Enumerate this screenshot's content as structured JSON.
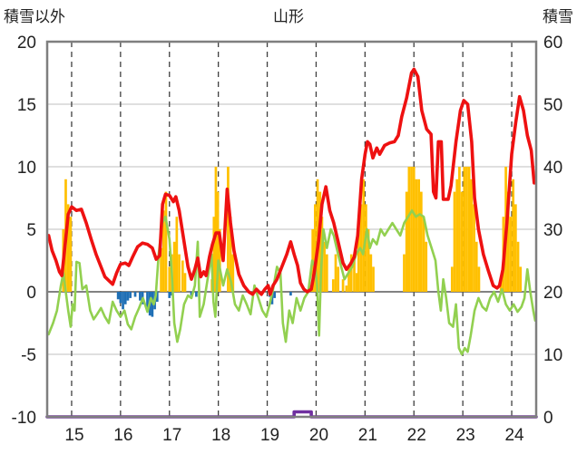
{
  "chart_data": {
    "type": "bar+line",
    "title": "山形",
    "left_axis_label": "積雪以外",
    "right_axis_label": "積雪",
    "left_ylim": [
      -10,
      20
    ],
    "left_ticks": [
      "-10",
      "-5",
      "0",
      "5",
      "10",
      "15",
      "20"
    ],
    "right_ylim": [
      0,
      60
    ],
    "right_ticks": [
      "0",
      "10",
      "20",
      "30",
      "40",
      "50",
      "60"
    ],
    "x_range": [
      14.5,
      24.5
    ],
    "x_ticks": [
      {
        "x": 15,
        "label": "15"
      },
      {
        "x": 16,
        "label": "16"
      },
      {
        "x": 17,
        "label": "17"
      },
      {
        "x": 18,
        "label": "18"
      },
      {
        "x": 19,
        "label": "19"
      },
      {
        "x": 20,
        "label": "20"
      },
      {
        "x": 21,
        "label": "21"
      },
      {
        "x": 22,
        "label": "22"
      },
      {
        "x": 23,
        "label": "23"
      },
      {
        "x": 24,
        "label": "24"
      }
    ],
    "grid": {
      "horizontal": true,
      "vertical_dashed": true
    },
    "colors": {
      "red_series": "#ee1111",
      "green_series": "#92d050",
      "snow_bars": "#ffc000",
      "negative_bars": "#1f6fb5",
      "purple_series": "#7030a0",
      "axis": "#7f7f7f"
    },
    "series_red": [
      [
        14.53,
        4.5
      ],
      [
        14.6,
        3.3
      ],
      [
        14.68,
        2.5
      ],
      [
        14.75,
        1.6
      ],
      [
        14.8,
        1.3
      ],
      [
        14.86,
        3.5
      ],
      [
        14.93,
        6.2
      ],
      [
        15.0,
        6.8
      ],
      [
        15.1,
        6.5
      ],
      [
        15.2,
        6.6
      ],
      [
        15.3,
        5.5
      ],
      [
        15.4,
        4.2
      ],
      [
        15.5,
        3.0
      ],
      [
        15.6,
        2.0
      ],
      [
        15.68,
        1.2
      ],
      [
        15.76,
        0.9
      ],
      [
        15.84,
        0.6
      ],
      [
        15.92,
        1.5
      ],
      [
        16.0,
        2.2
      ],
      [
        16.1,
        2.3
      ],
      [
        16.17,
        2.1
      ],
      [
        16.25,
        2.8
      ],
      [
        16.35,
        3.6
      ],
      [
        16.45,
        3.9
      ],
      [
        16.55,
        3.8
      ],
      [
        16.65,
        3.5
      ],
      [
        16.73,
        2.6
      ],
      [
        16.8,
        2.9
      ],
      [
        16.86,
        7.0
      ],
      [
        16.92,
        7.8
      ],
      [
        17.0,
        7.7
      ],
      [
        17.08,
        7.2
      ],
      [
        17.13,
        7.6
      ],
      [
        17.2,
        6.5
      ],
      [
        17.3,
        4.0
      ],
      [
        17.38,
        2.0
      ],
      [
        17.45,
        1.0
      ],
      [
        17.52,
        1.8
      ],
      [
        17.58,
        2.7
      ],
      [
        17.64,
        1.2
      ],
      [
        17.7,
        1.6
      ],
      [
        17.75,
        1.3
      ],
      [
        17.82,
        2.8
      ],
      [
        17.88,
        3.8
      ],
      [
        17.95,
        4.7
      ],
      [
        18.02,
        4.7
      ],
      [
        18.1,
        2.5
      ],
      [
        18.18,
        8.2
      ],
      [
        18.25,
        5.5
      ],
      [
        18.32,
        3.3
      ],
      [
        18.42,
        1.4
      ],
      [
        18.52,
        0.5
      ],
      [
        18.62,
        0.0
      ],
      [
        18.7,
        -0.2
      ],
      [
        18.78,
        0.2
      ],
      [
        18.88,
        -0.2
      ],
      [
        18.95,
        0.2
      ],
      [
        19.02,
        0.5
      ],
      [
        19.06,
        -0.2
      ],
      [
        19.12,
        0.5
      ],
      [
        19.2,
        1.0
      ],
      [
        19.3,
        2.0
      ],
      [
        19.4,
        3.0
      ],
      [
        19.48,
        4.0
      ],
      [
        19.55,
        3.0
      ],
      [
        19.62,
        2.1
      ],
      [
        19.68,
        0.7
      ],
      [
        19.75,
        0.2
      ],
      [
        19.82,
        0.0
      ],
      [
        19.9,
        0.2
      ],
      [
        19.96,
        1.5
      ],
      [
        20.05,
        4.0
      ],
      [
        20.12,
        7.0
      ],
      [
        20.2,
        8.4
      ],
      [
        20.28,
        6.5
      ],
      [
        20.36,
        5.5
      ],
      [
        20.45,
        4.0
      ],
      [
        20.55,
        2.3
      ],
      [
        20.62,
        1.8
      ],
      [
        20.7,
        2.2
      ],
      [
        20.78,
        2.8
      ],
      [
        20.85,
        4.5
      ],
      [
        20.93,
        9.0
      ],
      [
        21.0,
        11.0
      ],
      [
        21.05,
        12.0
      ],
      [
        21.1,
        11.8
      ],
      [
        21.16,
        10.7
      ],
      [
        21.24,
        11.5
      ],
      [
        21.3,
        11.0
      ],
      [
        21.4,
        11.7
      ],
      [
        21.5,
        11.9
      ],
      [
        21.6,
        12.0
      ],
      [
        21.68,
        12.5
      ],
      [
        21.75,
        14.0
      ],
      [
        21.85,
        15.5
      ],
      [
        21.95,
        17.5
      ],
      [
        22.0,
        17.8
      ],
      [
        22.08,
        17.2
      ],
      [
        22.16,
        14.5
      ],
      [
        22.26,
        13.0
      ],
      [
        22.35,
        12.6
      ],
      [
        22.4,
        8.0
      ],
      [
        22.45,
        7.5
      ],
      [
        22.5,
        12.0
      ],
      [
        22.56,
        12.0
      ],
      [
        22.6,
        7.4
      ],
      [
        22.7,
        7.4
      ],
      [
        22.76,
        8.5
      ],
      [
        22.86,
        12.0
      ],
      [
        22.95,
        14.5
      ],
      [
        23.02,
        15.3
      ],
      [
        23.1,
        15.0
      ],
      [
        23.18,
        12.0
      ],
      [
        23.24,
        7.5
      ],
      [
        23.32,
        5.0
      ],
      [
        23.42,
        3.0
      ],
      [
        23.52,
        1.7
      ],
      [
        23.62,
        0.5
      ],
      [
        23.7,
        0.3
      ],
      [
        23.75,
        0.5
      ],
      [
        23.82,
        1.8
      ],
      [
        23.9,
        5.5
      ],
      [
        24.0,
        11.0
      ],
      [
        24.08,
        13.5
      ],
      [
        24.16,
        15.6
      ],
      [
        24.24,
        14.5
      ],
      [
        24.32,
        12.5
      ],
      [
        24.4,
        11.3
      ],
      [
        24.46,
        8.7
      ]
    ],
    "series_green": [
      [
        14.53,
        -3.4
      ],
      [
        14.62,
        -2.5
      ],
      [
        14.7,
        -1.5
      ],
      [
        14.78,
        0.5
      ],
      [
        14.83,
        1.5
      ],
      [
        14.88,
        0.0
      ],
      [
        14.93,
        -1.5
      ],
      [
        14.98,
        -2.8
      ],
      [
        15.02,
        -1.0
      ],
      [
        15.06,
        -1.5
      ],
      [
        15.1,
        2.4
      ],
      [
        15.16,
        2.3
      ],
      [
        15.22,
        0.2
      ],
      [
        15.3,
        0.5
      ],
      [
        15.38,
        -1.5
      ],
      [
        15.45,
        -2.2
      ],
      [
        15.52,
        -1.8
      ],
      [
        15.6,
        -1.3
      ],
      [
        15.68,
        -2.0
      ],
      [
        15.76,
        -2.5
      ],
      [
        15.84,
        -0.8
      ],
      [
        15.92,
        -1.5
      ],
      [
        16.0,
        -2.0
      ],
      [
        16.08,
        -1.5
      ],
      [
        16.15,
        -2.6
      ],
      [
        16.22,
        -3.0
      ],
      [
        16.3,
        -2.0
      ],
      [
        16.38,
        -1.3
      ],
      [
        16.46,
        -0.5
      ],
      [
        16.55,
        -1.6
      ],
      [
        16.62,
        -0.5
      ],
      [
        16.68,
        -1.0
      ],
      [
        16.72,
        -0.3
      ],
      [
        16.78,
        3.0
      ],
      [
        16.85,
        5.5
      ],
      [
        16.92,
        6.0
      ],
      [
        17.0,
        4.2
      ],
      [
        17.05,
        1.5
      ],
      [
        17.1,
        -2.5
      ],
      [
        17.16,
        -4.0
      ],
      [
        17.22,
        -3.0
      ],
      [
        17.3,
        -1.0
      ],
      [
        17.38,
        -0.3
      ],
      [
        17.45,
        -0.5
      ],
      [
        17.52,
        0.5
      ],
      [
        17.58,
        4.0
      ],
      [
        17.62,
        -2.0
      ],
      [
        17.7,
        -1.0
      ],
      [
        17.78,
        1.0
      ],
      [
        17.86,
        3.0
      ],
      [
        17.9,
        -0.8
      ],
      [
        17.94,
        -2.0
      ],
      [
        18.0,
        2.5
      ],
      [
        18.05,
        1.5
      ],
      [
        18.1,
        0.5
      ],
      [
        18.18,
        1.8
      ],
      [
        18.26,
        0.8
      ],
      [
        18.34,
        -1.0
      ],
      [
        18.42,
        -1.5
      ],
      [
        18.5,
        -0.3
      ],
      [
        18.58,
        -1.0
      ],
      [
        18.66,
        -1.8
      ],
      [
        18.74,
        0.5
      ],
      [
        18.82,
        -0.5
      ],
      [
        18.9,
        -1.5
      ],
      [
        18.98,
        -2.0
      ],
      [
        19.05,
        -1.0
      ],
      [
        19.12,
        0.2
      ],
      [
        19.2,
        2.0
      ],
      [
        19.27,
        1.5
      ],
      [
        19.32,
        -2.5
      ],
      [
        19.38,
        -4.0
      ],
      [
        19.45,
        -1.5
      ],
      [
        19.52,
        -2.5
      ],
      [
        19.6,
        -0.5
      ],
      [
        19.68,
        -1.5
      ],
      [
        19.76,
        -0.5
      ],
      [
        19.84,
        0.0
      ],
      [
        19.92,
        2.5
      ],
      [
        19.98,
        2.0
      ],
      [
        20.02,
        0.5
      ],
      [
        20.06,
        -3.5
      ],
      [
        20.1,
        1.5
      ],
      [
        20.15,
        5.0
      ],
      [
        20.22,
        3.5
      ],
      [
        20.3,
        5.0
      ],
      [
        20.36,
        4.5
      ],
      [
        20.42,
        3.5
      ],
      [
        20.5,
        2.2
      ],
      [
        20.58,
        1.0
      ],
      [
        20.66,
        1.5
      ],
      [
        20.74,
        2.0
      ],
      [
        20.82,
        3.0
      ],
      [
        20.9,
        3.5
      ],
      [
        20.96,
        3.0
      ],
      [
        21.04,
        5.0
      ],
      [
        21.1,
        3.5
      ],
      [
        21.16,
        4.2
      ],
      [
        21.24,
        3.8
      ],
      [
        21.32,
        5.0
      ],
      [
        21.4,
        4.5
      ],
      [
        21.48,
        5.0
      ],
      [
        21.56,
        5.5
      ],
      [
        21.64,
        5.0
      ],
      [
        21.72,
        4.5
      ],
      [
        21.8,
        5.5
      ],
      [
        21.88,
        6.0
      ],
      [
        21.96,
        6.5
      ],
      [
        22.04,
        6.0
      ],
      [
        22.12,
        6.2
      ],
      [
        22.2,
        6.0
      ],
      [
        22.28,
        4.5
      ],
      [
        22.36,
        3.5
      ],
      [
        22.44,
        2.5
      ],
      [
        22.5,
        0.0
      ],
      [
        22.55,
        -1.5
      ],
      [
        22.6,
        1.0
      ],
      [
        22.66,
        -0.5
      ],
      [
        22.72,
        -2.5
      ],
      [
        22.8,
        -2.8
      ],
      [
        22.86,
        -1.0
      ],
      [
        22.92,
        -4.5
      ],
      [
        22.98,
        -5.0
      ],
      [
        23.04,
        -4.5
      ],
      [
        23.1,
        -4.8
      ],
      [
        23.16,
        -3.5
      ],
      [
        23.24,
        -1.5
      ],
      [
        23.32,
        -0.5
      ],
      [
        23.4,
        -1.2
      ],
      [
        23.48,
        -1.5
      ],
      [
        23.56,
        -0.5
      ],
      [
        23.64,
        0.0
      ],
      [
        23.72,
        -0.8
      ],
      [
        23.8,
        0.2
      ],
      [
        23.88,
        -1.0
      ],
      [
        23.96,
        -1.5
      ],
      [
        24.04,
        -1.0
      ],
      [
        24.12,
        -1.6
      ],
      [
        24.2,
        -1.2
      ],
      [
        24.26,
        -0.5
      ],
      [
        24.32,
        1.8
      ],
      [
        24.38,
        0.0
      ],
      [
        24.44,
        -1.5
      ],
      [
        24.48,
        -2.3
      ]
    ],
    "bars_snow": [
      [
        14.83,
        5.0
      ],
      [
        14.88,
        9.0
      ],
      [
        14.93,
        7.0
      ],
      [
        14.98,
        6.0
      ],
      [
        16.83,
        3.5
      ],
      [
        16.88,
        6.5
      ],
      [
        16.93,
        8.0
      ],
      [
        17.0,
        2.0
      ],
      [
        17.05,
        3.0
      ],
      [
        17.1,
        4.0
      ],
      [
        17.15,
        6.0
      ],
      [
        17.2,
        3.0
      ],
      [
        17.27,
        2.5
      ],
      [
        17.32,
        1.5
      ],
      [
        17.87,
        1.0
      ],
      [
        17.91,
        6.0
      ],
      [
        17.95,
        10.0
      ],
      [
        17.99,
        8.0
      ],
      [
        18.03,
        5.0
      ],
      [
        18.2,
        10.0
      ],
      [
        18.25,
        6.0
      ],
      [
        18.3,
        3.0
      ],
      [
        19.88,
        0.5
      ],
      [
        19.93,
        5.0
      ],
      [
        19.98,
        7.0
      ],
      [
        20.03,
        9.0
      ],
      [
        20.08,
        8.0
      ],
      [
        20.12,
        6.0
      ],
      [
        20.17,
        4.0
      ],
      [
        20.22,
        3.0
      ],
      [
        20.35,
        1.0
      ],
      [
        20.4,
        3.0
      ],
      [
        20.45,
        2.0
      ],
      [
        20.55,
        1.0
      ],
      [
        20.62,
        0.5
      ],
      [
        20.67,
        2.0
      ],
      [
        20.72,
        3.0
      ],
      [
        20.78,
        2.5
      ],
      [
        20.83,
        1.5
      ],
      [
        20.87,
        5.0
      ],
      [
        20.92,
        7.0
      ],
      [
        20.97,
        9.0
      ],
      [
        21.02,
        7.0
      ],
      [
        21.07,
        5.0
      ],
      [
        21.12,
        3.0
      ],
      [
        21.17,
        2.0
      ],
      [
        21.8,
        3.0
      ],
      [
        21.85,
        8.0
      ],
      [
        21.9,
        10.0
      ],
      [
        21.95,
        10.0
      ],
      [
        22.0,
        10.0
      ],
      [
        22.05,
        9.0
      ],
      [
        22.1,
        9.0
      ],
      [
        22.15,
        8.0
      ],
      [
        22.2,
        6.0
      ],
      [
        22.25,
        4.0
      ],
      [
        22.78,
        2.0
      ],
      [
        22.83,
        8.0
      ],
      [
        22.88,
        9.0
      ],
      [
        22.93,
        10.0
      ],
      [
        22.98,
        8.0
      ],
      [
        23.03,
        10.0
      ],
      [
        23.08,
        10.0
      ],
      [
        23.13,
        10.0
      ],
      [
        23.18,
        9.0
      ],
      [
        23.23,
        7.0
      ],
      [
        23.28,
        4.0
      ],
      [
        23.33,
        2.0
      ],
      [
        23.78,
        1.0
      ],
      [
        23.83,
        6.0
      ],
      [
        23.88,
        10.0
      ],
      [
        23.93,
        8.0
      ],
      [
        23.98,
        6.0
      ],
      [
        24.03,
        9.0
      ],
      [
        24.08,
        7.0
      ],
      [
        24.13,
        4.0
      ],
      [
        24.18,
        2.0
      ]
    ],
    "bars_negative": [
      [
        15.95,
        -0.6
      ],
      [
        16.0,
        -0.9
      ],
      [
        16.05,
        -1.4
      ],
      [
        16.1,
        -1.0
      ],
      [
        16.15,
        -0.7
      ],
      [
        16.2,
        -0.5
      ],
      [
        16.3,
        -0.4
      ],
      [
        16.4,
        -0.7
      ],
      [
        16.45,
        -1.0
      ],
      [
        16.55,
        -1.5
      ],
      [
        16.6,
        -1.9
      ],
      [
        16.65,
        -2.0
      ],
      [
        16.7,
        -1.4
      ],
      [
        16.75,
        -0.8
      ],
      [
        17.0,
        -0.5
      ],
      [
        17.05,
        -0.3
      ],
      [
        17.45,
        -0.3
      ],
      [
        17.55,
        -0.4
      ],
      [
        19.05,
        -0.4
      ],
      [
        19.1,
        -1.0
      ],
      [
        19.15,
        -0.5
      ],
      [
        19.48,
        -0.3
      ]
    ],
    "series_purple": [
      [
        14.5,
        -10
      ],
      [
        19.55,
        -10
      ],
      [
        19.55,
        -9.6
      ],
      [
        19.9,
        -9.6
      ],
      [
        19.9,
        -10
      ],
      [
        24.5,
        -10
      ]
    ]
  }
}
